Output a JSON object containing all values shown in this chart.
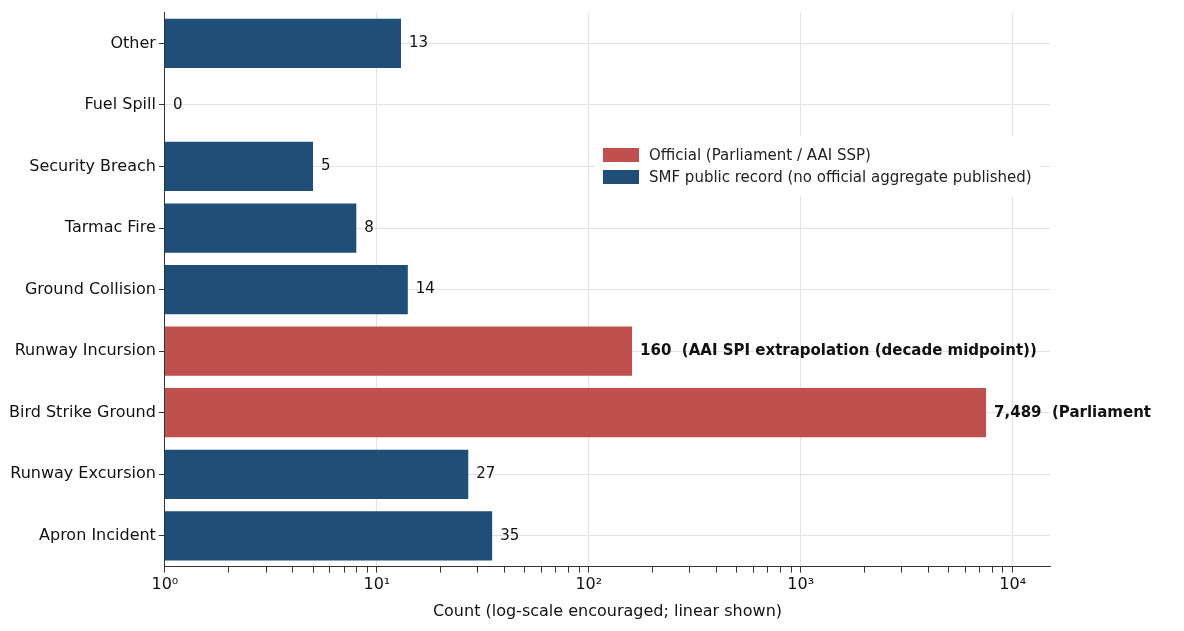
{
  "chart_data": {
    "type": "bar",
    "orientation": "horizontal",
    "xlabel": "Count (log-scale encouraged; linear shown)",
    "log": "x",
    "grid": true,
    "legend": "right",
    "categories": [
      "Other",
      "Fuel Spill",
      "Security Breach",
      "Tarmac Fire",
      "Ground Collision",
      "Runway Incursion",
      "Bird Strike Ground",
      "Runway Excursion",
      "Apron Incident"
    ],
    "series": [
      {
        "name": "Official (Parliament / AAI SSP)",
        "color": "#c0504d",
        "values": [
          null,
          null,
          null,
          null,
          null,
          160,
          7489,
          null,
          null
        ],
        "value_labels": [
          null,
          null,
          null,
          null,
          null,
          "160  (AAI SPI extrapolation (decade midpoint))",
          "7,489  (Parliament",
          null,
          null
        ]
      },
      {
        "name": "SMF public record (no official aggregate published)",
        "color": "#1f4e79",
        "values": [
          13,
          null,
          5,
          8,
          14,
          null,
          null,
          27,
          35
        ],
        "value_labels": [
          "13",
          "0",
          "5",
          "8",
          "14",
          null,
          null,
          "27",
          "35"
        ]
      }
    ],
    "xlim": [
      1,
      15000
    ],
    "xticks": [
      {
        "value": 1,
        "label": "10⁰"
      },
      {
        "value": 2,
        "label": null
      },
      {
        "value": 3,
        "label": null
      },
      {
        "value": 4,
        "label": null
      },
      {
        "value": 5,
        "label": null
      },
      {
        "value": 6,
        "label": null
      },
      {
        "value": 7,
        "label": null
      },
      {
        "value": 8,
        "label": null
      },
      {
        "value": 9,
        "label": null
      },
      {
        "value": 10,
        "label": "10¹"
      },
      {
        "value": 20,
        "label": null
      },
      {
        "value": 30,
        "label": null
      },
      {
        "value": 40,
        "label": null
      },
      {
        "value": 50,
        "label": null
      },
      {
        "value": 60,
        "label": null
      },
      {
        "value": 70,
        "label": null
      },
      {
        "value": 80,
        "label": null
      },
      {
        "value": 90,
        "label": null
      },
      {
        "value": 100,
        "label": "10²"
      },
      {
        "value": 200,
        "label": null
      },
      {
        "value": 300,
        "label": null
      },
      {
        "value": 400,
        "label": null
      },
      {
        "value": 500,
        "label": null
      },
      {
        "value": 600,
        "label": null
      },
      {
        "value": 700,
        "label": null
      },
      {
        "value": 800,
        "label": null
      },
      {
        "value": 900,
        "label": null
      },
      {
        "value": 1000,
        "label": "10³"
      },
      {
        "value": 2000,
        "label": null
      },
      {
        "value": 3000,
        "label": null
      },
      {
        "value": 4000,
        "label": null
      },
      {
        "value": 5000,
        "label": null
      },
      {
        "value": 6000,
        "label": null
      },
      {
        "value": 7000,
        "label": null
      },
      {
        "value": 8000,
        "label": null
      },
      {
        "value": 9000,
        "label": null
      },
      {
        "value": 10000,
        "label": "10⁴"
      }
    ]
  }
}
